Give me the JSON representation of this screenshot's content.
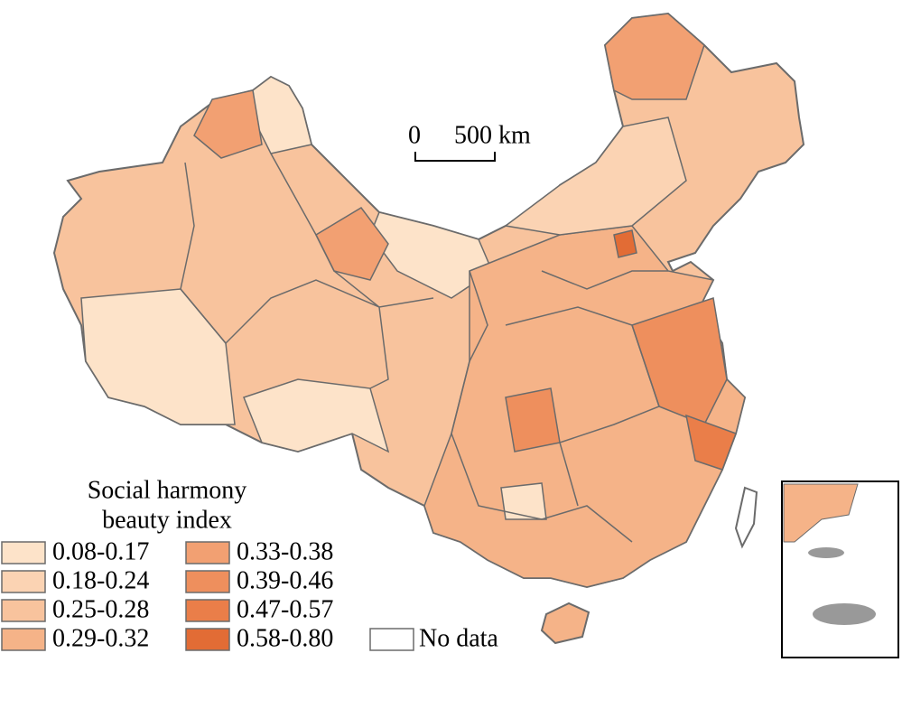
{
  "scale_bar": {
    "labels": [
      "0",
      "500 km"
    ]
  },
  "legend": {
    "title": [
      "Social harmony",
      "beauty index"
    ],
    "items": [
      {
        "label": "0.08-0.17",
        "color": "#fde3c9"
      },
      {
        "label": "0.18-0.24",
        "color": "#fbd3b3"
      },
      {
        "label": "0.25-0.28",
        "color": "#f8c39d"
      },
      {
        "label": "0.29-0.32",
        "color": "#f5b388"
      },
      {
        "label": "0.33-0.38",
        "color": "#f2a072"
      },
      {
        "label": "0.39-0.46",
        "color": "#ee8f5d"
      },
      {
        "label": "0.47-0.57",
        "color": "#ea7e49"
      },
      {
        "label": "0.58-0.80",
        "color": "#e26c35"
      }
    ],
    "no_data": {
      "label": "No data",
      "color": "#ffffff"
    }
  }
}
